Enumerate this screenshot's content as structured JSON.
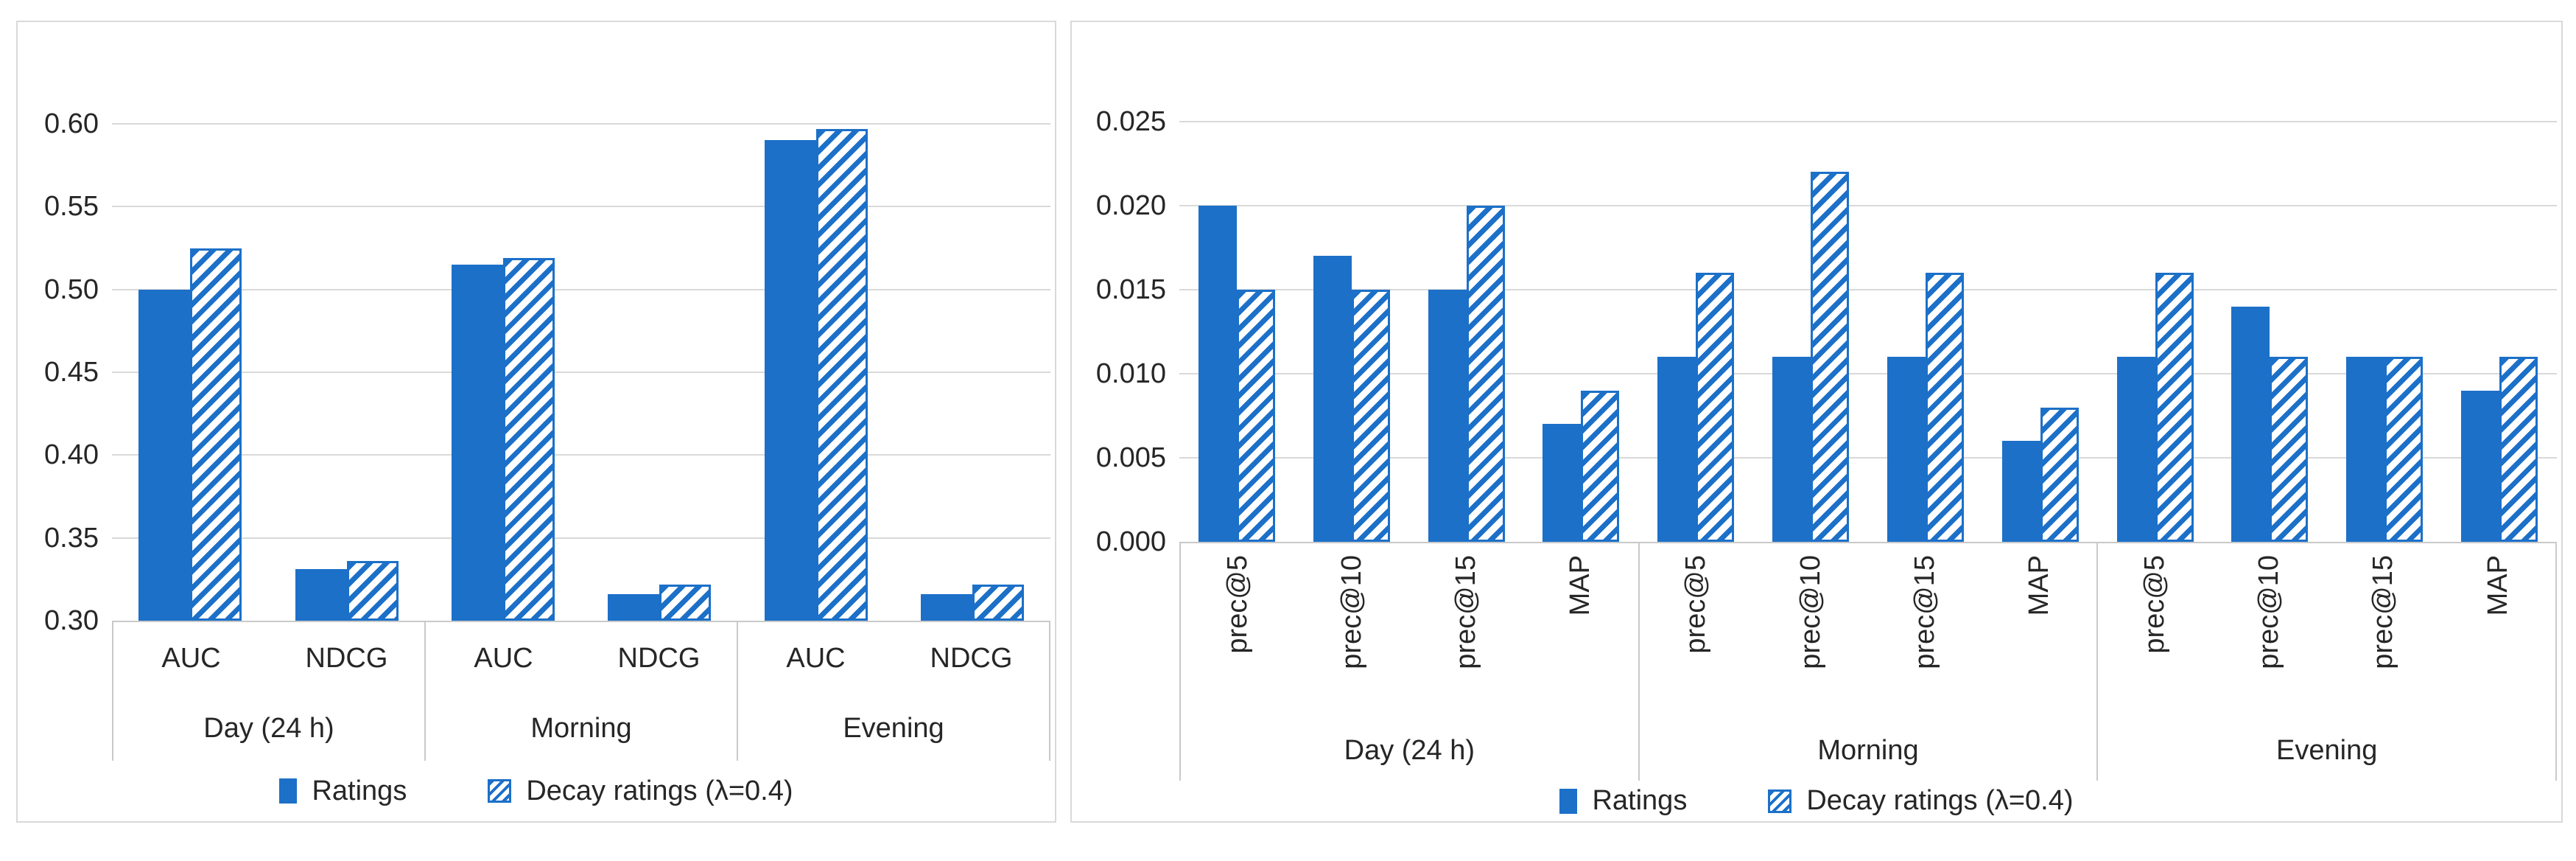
{
  "colors": {
    "bar_fill": "#1C70C8",
    "gridline": "#D9D9D9",
    "axis_line": "#C9C9C9",
    "panel_border": "#D9D9D9",
    "text": "#262626"
  },
  "legend": {
    "series1_label": "Ratings",
    "series2_label": "Decay ratings (λ=0.4)"
  },
  "chart_data": [
    {
      "type": "bar",
      "title": "",
      "xlabel": "",
      "ylabel": "",
      "grid": true,
      "legend_position": "bottom",
      "category_label_rotation": 0,
      "groups": [
        "Day (24 h)",
        "Morning",
        "Evening"
      ],
      "categories": [
        "AUC",
        "NDCG"
      ],
      "ylim": [
        0.3,
        0.6
      ],
      "yticks": [
        {
          "value": 0.3,
          "label": "0.30"
        },
        {
          "value": 0.35,
          "label": "0.35"
        },
        {
          "value": 0.4,
          "label": "0.40"
        },
        {
          "value": 0.45,
          "label": "0.45"
        },
        {
          "value": 0.5,
          "label": "0.50"
        },
        {
          "value": 0.55,
          "label": "0.55"
        },
        {
          "value": 0.6,
          "label": "0.60"
        }
      ],
      "series": [
        {
          "name": "Ratings",
          "pattern": "solid",
          "values_by_group": [
            [
              0.5,
              0.331
            ],
            [
              0.515,
              0.316
            ],
            [
              0.59,
              0.316
            ]
          ]
        },
        {
          "name": "Decay ratings (λ=0.4)",
          "pattern": "hatched",
          "values_by_group": [
            [
              0.525,
              0.336
            ],
            [
              0.519,
              0.322
            ],
            [
              0.597,
              0.322
            ]
          ]
        }
      ]
    },
    {
      "type": "bar",
      "title": "",
      "xlabel": "",
      "ylabel": "",
      "grid": true,
      "legend_position": "bottom",
      "category_label_rotation": 90,
      "groups": [
        "Day (24 h)",
        "Morning",
        "Evening"
      ],
      "categories": [
        "prec@5",
        "prec@10",
        "prec@15",
        "MAP"
      ],
      "ylim": [
        0.0,
        0.025
      ],
      "yticks": [
        {
          "value": 0.0,
          "label": "0.000"
        },
        {
          "value": 0.005,
          "label": "0.005"
        },
        {
          "value": 0.01,
          "label": "0.010"
        },
        {
          "value": 0.015,
          "label": "0.015"
        },
        {
          "value": 0.02,
          "label": "0.020"
        },
        {
          "value": 0.025,
          "label": "0.025"
        }
      ],
      "series": [
        {
          "name": "Ratings",
          "pattern": "solid",
          "values_by_group": [
            [
              0.02,
              0.017,
              0.015,
              0.007
            ],
            [
              0.011,
              0.011,
              0.011,
              0.006
            ],
            [
              0.011,
              0.014,
              0.011,
              0.009
            ]
          ]
        },
        {
          "name": "Decay ratings (λ=0.4)",
          "pattern": "hatched",
          "values_by_group": [
            [
              0.015,
              0.015,
              0.02,
              0.009
            ],
            [
              0.016,
              0.022,
              0.016,
              0.008
            ],
            [
              0.016,
              0.011,
              0.011,
              0.011
            ]
          ]
        }
      ]
    }
  ]
}
